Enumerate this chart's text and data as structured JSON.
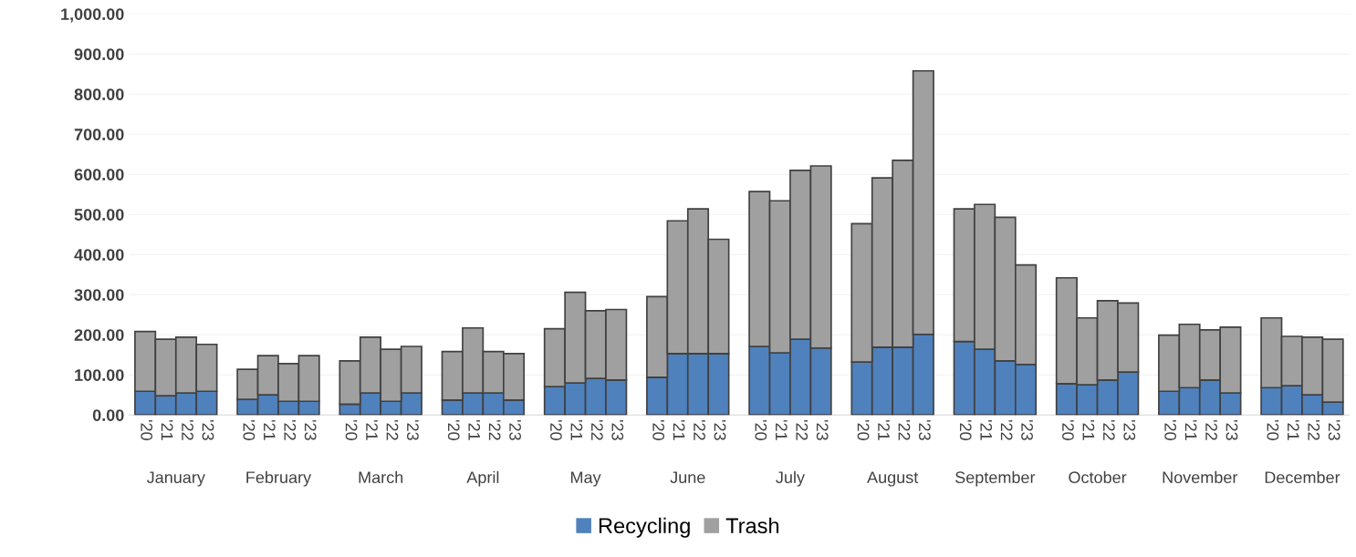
{
  "chart_data": {
    "type": "bar",
    "stacked": true,
    "categories": [
      "'20",
      "'21",
      "'22",
      "'23",
      "'20",
      "'21",
      "'22",
      "'23",
      "'20",
      "'21",
      "'22",
      "'23",
      "'20",
      "'21",
      "'22",
      "'23",
      "'20",
      "'21",
      "'22",
      "'23",
      "'20",
      "'21",
      "'22",
      "'23",
      "'20",
      "'21",
      "'22",
      "'23",
      "'20",
      "'21",
      "'22",
      "'23",
      "'20",
      "'21",
      "'22",
      "'23",
      "'20",
      "'21",
      "'22",
      "'23",
      "'20",
      "'21",
      "'22",
      "'23",
      "'20",
      "'21",
      "'22",
      "'23"
    ],
    "series": [
      {
        "name": "Recycling",
        "color": "#4f81bd",
        "values": [
          59,
          48,
          55,
          59,
          39,
          50,
          34,
          34,
          27,
          55,
          34,
          55,
          37,
          55,
          55,
          37,
          71,
          80,
          91,
          87,
          94,
          153,
          153,
          153,
          171,
          155,
          189,
          167,
          132,
          169,
          169,
          201,
          183,
          164,
          135,
          126,
          78,
          75,
          87,
          107,
          59,
          68,
          87,
          55,
          68,
          73,
          50,
          32
        ]
      },
      {
        "name": "Trash",
        "color": "#a0a0a0",
        "values": [
          149,
          141,
          139,
          117,
          75,
          98,
          94,
          114,
          108,
          139,
          130,
          116,
          121,
          162,
          103,
          116,
          144,
          226,
          169,
          176,
          201,
          331,
          361,
          285,
          386,
          379,
          421,
          454,
          345,
          422,
          466,
          657,
          331,
          361,
          358,
          248,
          264,
          167,
          198,
          172,
          140,
          158,
          125,
          164,
          174,
          123,
          144,
          157
        ]
      }
    ],
    "annotations": [
      "January",
      "February",
      "March",
      "April",
      "May",
      "June",
      "July",
      "August",
      "September",
      "October",
      "November",
      "December"
    ],
    "ylim": [
      0,
      1000
    ],
    "yticks": [
      {
        "value": 0,
        "label": "0.00"
      },
      {
        "value": 100,
        "label": "100.00"
      },
      {
        "value": 200,
        "label": "200.00"
      },
      {
        "value": 300,
        "label": "300.00"
      },
      {
        "value": 400,
        "label": "400.00"
      },
      {
        "value": 500,
        "label": "500.00"
      },
      {
        "value": 600,
        "label": "600.00"
      },
      {
        "value": 700,
        "label": "700.00"
      },
      {
        "value": 800,
        "label": "800.00"
      },
      {
        "value": 900,
        "label": "900.00"
      },
      {
        "value": 1000,
        "label": "1,000.00"
      }
    ],
    "grid": "y",
    "legend": "bottom"
  }
}
